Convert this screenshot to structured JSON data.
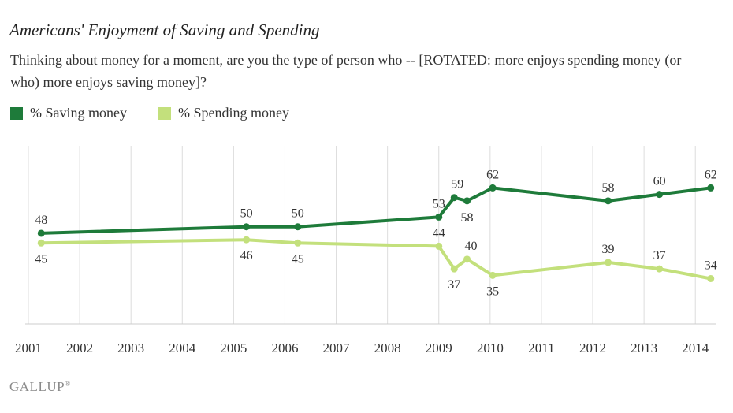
{
  "chart_data": {
    "type": "line",
    "title": "Americans' Enjoyment of Saving and Spending",
    "subtitle": "Thinking about money for a moment, are you the type of person who -- [ROTATED:  more enjoys spending money (or who) more enjoys saving money]?",
    "xlabel": "",
    "ylabel": "",
    "x_ticks": [
      "2001",
      "2002",
      "2003",
      "2004",
      "2005",
      "2006",
      "2007",
      "2008",
      "2009",
      "2010",
      "2011",
      "2012",
      "2013",
      "2014"
    ],
    "xlim": [
      2001,
      2014.35
    ],
    "ylim": [
      20,
      75
    ],
    "grid": "vertical",
    "legend_position": "top-left",
    "series": [
      {
        "name": "% Saving money",
        "color": "#1e7b3a",
        "points": [
          {
            "x": 2001.25,
            "y": 48,
            "label": "48"
          },
          {
            "x": 2005.25,
            "y": 50,
            "label": "50"
          },
          {
            "x": 2006.25,
            "y": 50,
            "label": "50"
          },
          {
            "x": 2009.0,
            "y": 53,
            "label": "53"
          },
          {
            "x": 2009.3,
            "y": 59,
            "label": "59"
          },
          {
            "x": 2009.55,
            "y": 58,
            "label": "58"
          },
          {
            "x": 2010.05,
            "y": 62,
            "label": "62"
          },
          {
            "x": 2012.3,
            "y": 58,
            "label": "58"
          },
          {
            "x": 2013.3,
            "y": 60,
            "label": "60"
          },
          {
            "x": 2014.3,
            "y": 62,
            "label": "62"
          }
        ]
      },
      {
        "name": "% Spending money",
        "color": "#c3e07c",
        "points": [
          {
            "x": 2001.25,
            "y": 45,
            "label": "45"
          },
          {
            "x": 2005.25,
            "y": 46,
            "label": "46"
          },
          {
            "x": 2006.25,
            "y": 45,
            "label": "45"
          },
          {
            "x": 2009.0,
            "y": 44,
            "label": "44"
          },
          {
            "x": 2009.3,
            "y": 37,
            "label": "37"
          },
          {
            "x": 2009.55,
            "y": 40,
            "label": "40"
          },
          {
            "x": 2010.05,
            "y": 35,
            "label": "35"
          },
          {
            "x": 2012.3,
            "y": 39,
            "label": "39"
          },
          {
            "x": 2013.3,
            "y": 37,
            "label": "37"
          },
          {
            "x": 2014.3,
            "y": 34,
            "label": "34"
          }
        ]
      }
    ]
  },
  "brand": {
    "logo_text": "GALLUP",
    "logo_mark": "®"
  }
}
